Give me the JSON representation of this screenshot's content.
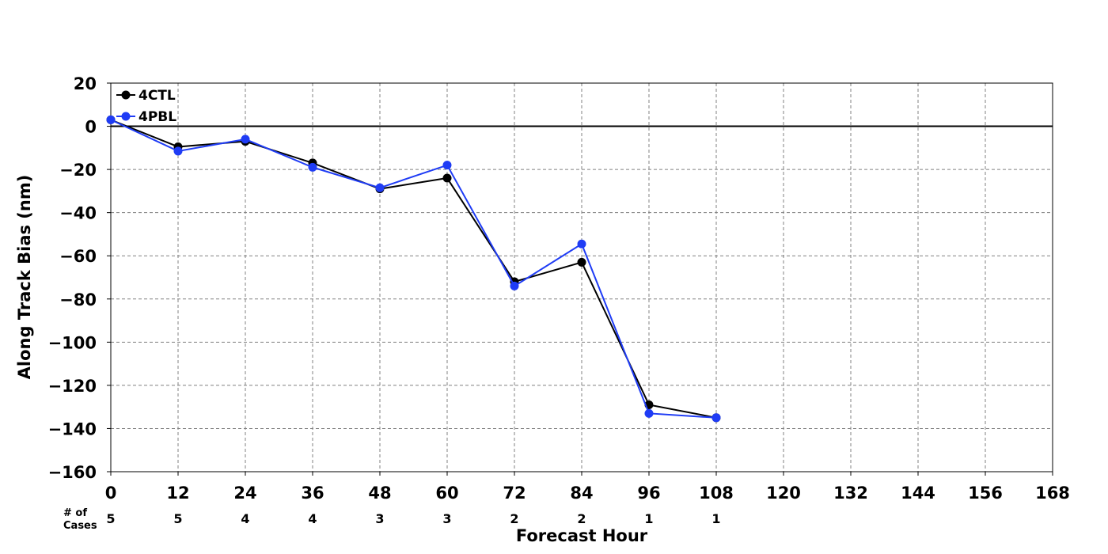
{
  "chart_data": {
    "type": "line",
    "xlabel": "Forecast Hour",
    "ylabel": "Along Track Bias (nm)",
    "xlim": [
      0,
      168
    ],
    "ylim": [
      -160,
      20
    ],
    "xticks": [
      0,
      12,
      24,
      36,
      48,
      60,
      72,
      84,
      96,
      108,
      120,
      132,
      144,
      156,
      168
    ],
    "yticks": [
      20,
      0,
      -20,
      -40,
      -60,
      -80,
      -100,
      -120,
      -140,
      -160
    ],
    "grid": true,
    "reference_line_y": 0,
    "legend_position": "top-left",
    "series": [
      {
        "name": "4CTL",
        "color": "#000000",
        "x": [
          0,
          12,
          24,
          36,
          48,
          60,
          72,
          84,
          96,
          108
        ],
        "y": [
          3,
          -9.5,
          -7,
          -17,
          -29,
          -24,
          -72,
          -63,
          -129,
          -135
        ]
      },
      {
        "name": "4PBL",
        "color": "#1f3cf5",
        "x": [
          0,
          12,
          24,
          36,
          48,
          60,
          72,
          84,
          96,
          108
        ],
        "y": [
          3,
          -11.5,
          -6,
          -19,
          -28.5,
          -18,
          -74,
          -54.5,
          -133,
          -135
        ]
      }
    ],
    "cases": {
      "label_line1": "# of",
      "label_line2": "Cases",
      "x": [
        0,
        12,
        24,
        36,
        48,
        60,
        72,
        84,
        96,
        108
      ],
      "values": [
        "5",
        "5",
        "4",
        "4",
        "3",
        "3",
        "2",
        "2",
        "1",
        "1"
      ]
    }
  }
}
